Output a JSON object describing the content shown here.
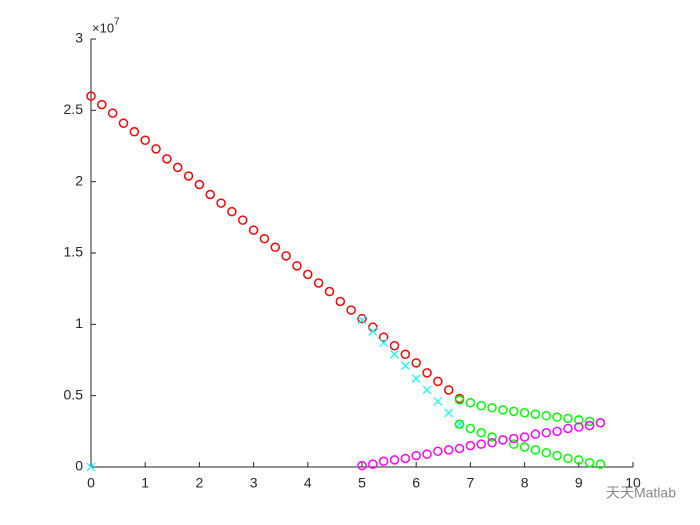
{
  "chart_data": {
    "type": "scatter",
    "y_exponent": "×10",
    "y_exponent_power": "7",
    "watermark": "天天Matlab",
    "xlim": [
      0,
      10
    ],
    "xticks": [
      0,
      1,
      2,
      3,
      4,
      5,
      6,
      7,
      8,
      9,
      10
    ],
    "ylim": [
      0,
      3
    ],
    "yticks": [
      0,
      0.5,
      1,
      1.5,
      2,
      2.5,
      3
    ],
    "series": [
      {
        "color": "#ff0000",
        "marker": "o",
        "x": [
          0,
          0.2,
          0.4,
          0.6,
          0.8,
          1,
          1.2,
          1.4,
          1.6,
          1.8,
          2,
          2.2,
          2.4,
          2.6,
          2.8,
          3,
          3.2,
          3.4,
          3.6,
          3.8,
          4,
          4.2,
          4.4,
          4.6,
          4.8,
          5,
          5.2,
          5.4,
          5.6,
          5.8,
          6,
          6.2,
          6.4,
          6.6,
          6.8
        ],
        "values": [
          2.6,
          2.54,
          2.48,
          2.41,
          2.35,
          2.29,
          2.23,
          2.16,
          2.1,
          2.04,
          1.98,
          1.91,
          1.85,
          1.79,
          1.73,
          1.66,
          1.6,
          1.54,
          1.48,
          1.41,
          1.35,
          1.29,
          1.23,
          1.16,
          1.1,
          1.04,
          0.98,
          0.91,
          0.85,
          0.79,
          0.73,
          0.66,
          0.6,
          0.54,
          0.48
        ]
      },
      {
        "color": "#00ffff",
        "marker": "x",
        "x": [
          0,
          5,
          5.2,
          5.4,
          5.6,
          5.8,
          6,
          6.2,
          6.4,
          6.6,
          6.8
        ],
        "values": [
          0,
          1.03,
          0.95,
          0.87,
          0.79,
          0.71,
          0.62,
          0.54,
          0.46,
          0.38,
          0.3
        ]
      },
      {
        "color": "#00ff00",
        "marker": "o",
        "x": [
          6.8,
          7,
          7.2,
          7.4,
          7.6,
          7.8,
          8,
          8.2,
          8.4,
          8.6,
          8.8,
          9,
          9.2,
          9.4
        ],
        "values": [
          0.47,
          0.45,
          0.43,
          0.415,
          0.4,
          0.39,
          0.38,
          0.37,
          0.36,
          0.35,
          0.34,
          0.33,
          0.32,
          0.31
        ]
      },
      {
        "color": "#00ff00",
        "marker": "o",
        "x": [
          6.8,
          7,
          7.2,
          7.4,
          7.6,
          7.8,
          8,
          8.2,
          8.4,
          8.6,
          8.8,
          9,
          9.2,
          9.4
        ],
        "values": [
          0.3,
          0.27,
          0.24,
          0.21,
          0.19,
          0.16,
          0.14,
          0.12,
          0.1,
          0.08,
          0.06,
          0.05,
          0.03,
          0.02
        ]
      },
      {
        "color": "#ff00ff",
        "marker": "o",
        "x": [
          5,
          5.2,
          5.4,
          5.6,
          5.8,
          6,
          6.2,
          6.4,
          6.6,
          6.8,
          7,
          7.2,
          7.4,
          7.6,
          7.8,
          8,
          8.2,
          8.4,
          8.6,
          8.8,
          9,
          9.2,
          9.4
        ],
        "values": [
          0.01,
          0.02,
          0.04,
          0.05,
          0.06,
          0.08,
          0.09,
          0.11,
          0.12,
          0.13,
          0.15,
          0.16,
          0.17,
          0.19,
          0.2,
          0.21,
          0.23,
          0.24,
          0.25,
          0.27,
          0.28,
          0.29,
          0.31
        ]
      }
    ]
  }
}
